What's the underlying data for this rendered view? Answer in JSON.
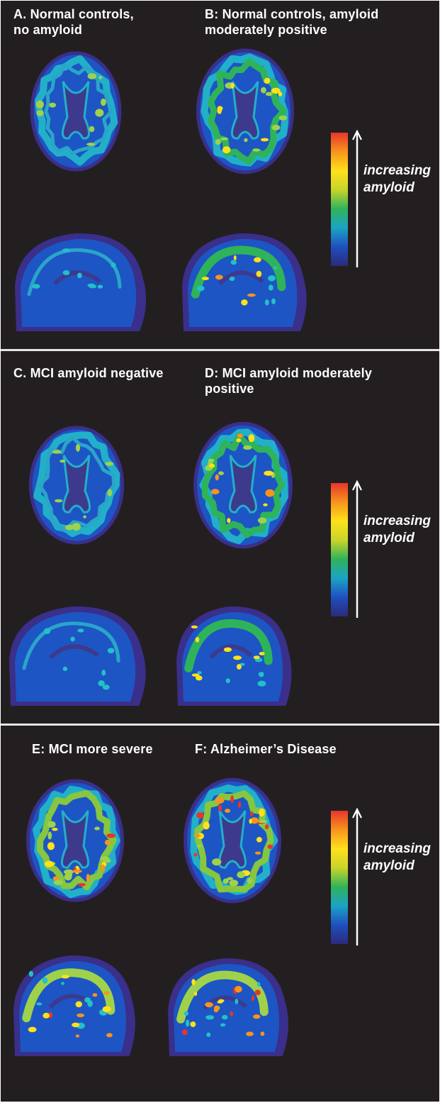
{
  "colors": {
    "background": "#231f20",
    "divider": "#e6e6e6",
    "scale_stops": [
      "#2b2a7a",
      "#1f4fbf",
      "#1ba3c6",
      "#2fb35a",
      "#c8d42a",
      "#ffe11a",
      "#f7941d",
      "#e8352b"
    ]
  },
  "sections": [
    {
      "panels": [
        {
          "label": "A. Normal controls,\nno amyloid",
          "level": 0.18,
          "views": [
            "axial",
            "sagittal"
          ]
        },
        {
          "label": "B: Normal controls, amyloid\nmoderately positive",
          "level": 0.5,
          "views": [
            "axial",
            "sagittal"
          ]
        }
      ],
      "scale_label": "increasing\namyloid"
    },
    {
      "panels": [
        {
          "label": "C. MCI amyloid negative",
          "level": 0.18,
          "views": [
            "axial",
            "sagittal"
          ]
        },
        {
          "label": "D: MCI amyloid moderately\npositive",
          "level": 0.5,
          "views": [
            "axial",
            "sagittal"
          ]
        }
      ],
      "scale_label": "increasing\namyloid"
    },
    {
      "panels": [
        {
          "label": "E: MCI more severe",
          "level": 0.72,
          "views": [
            "axial",
            "sagittal"
          ]
        },
        {
          "label": "F:  Alzheimer’s Disease",
          "level": 0.95,
          "views": [
            "axial",
            "sagittal"
          ]
        }
      ],
      "scale_label": "increasing\namyloid"
    }
  ]
}
